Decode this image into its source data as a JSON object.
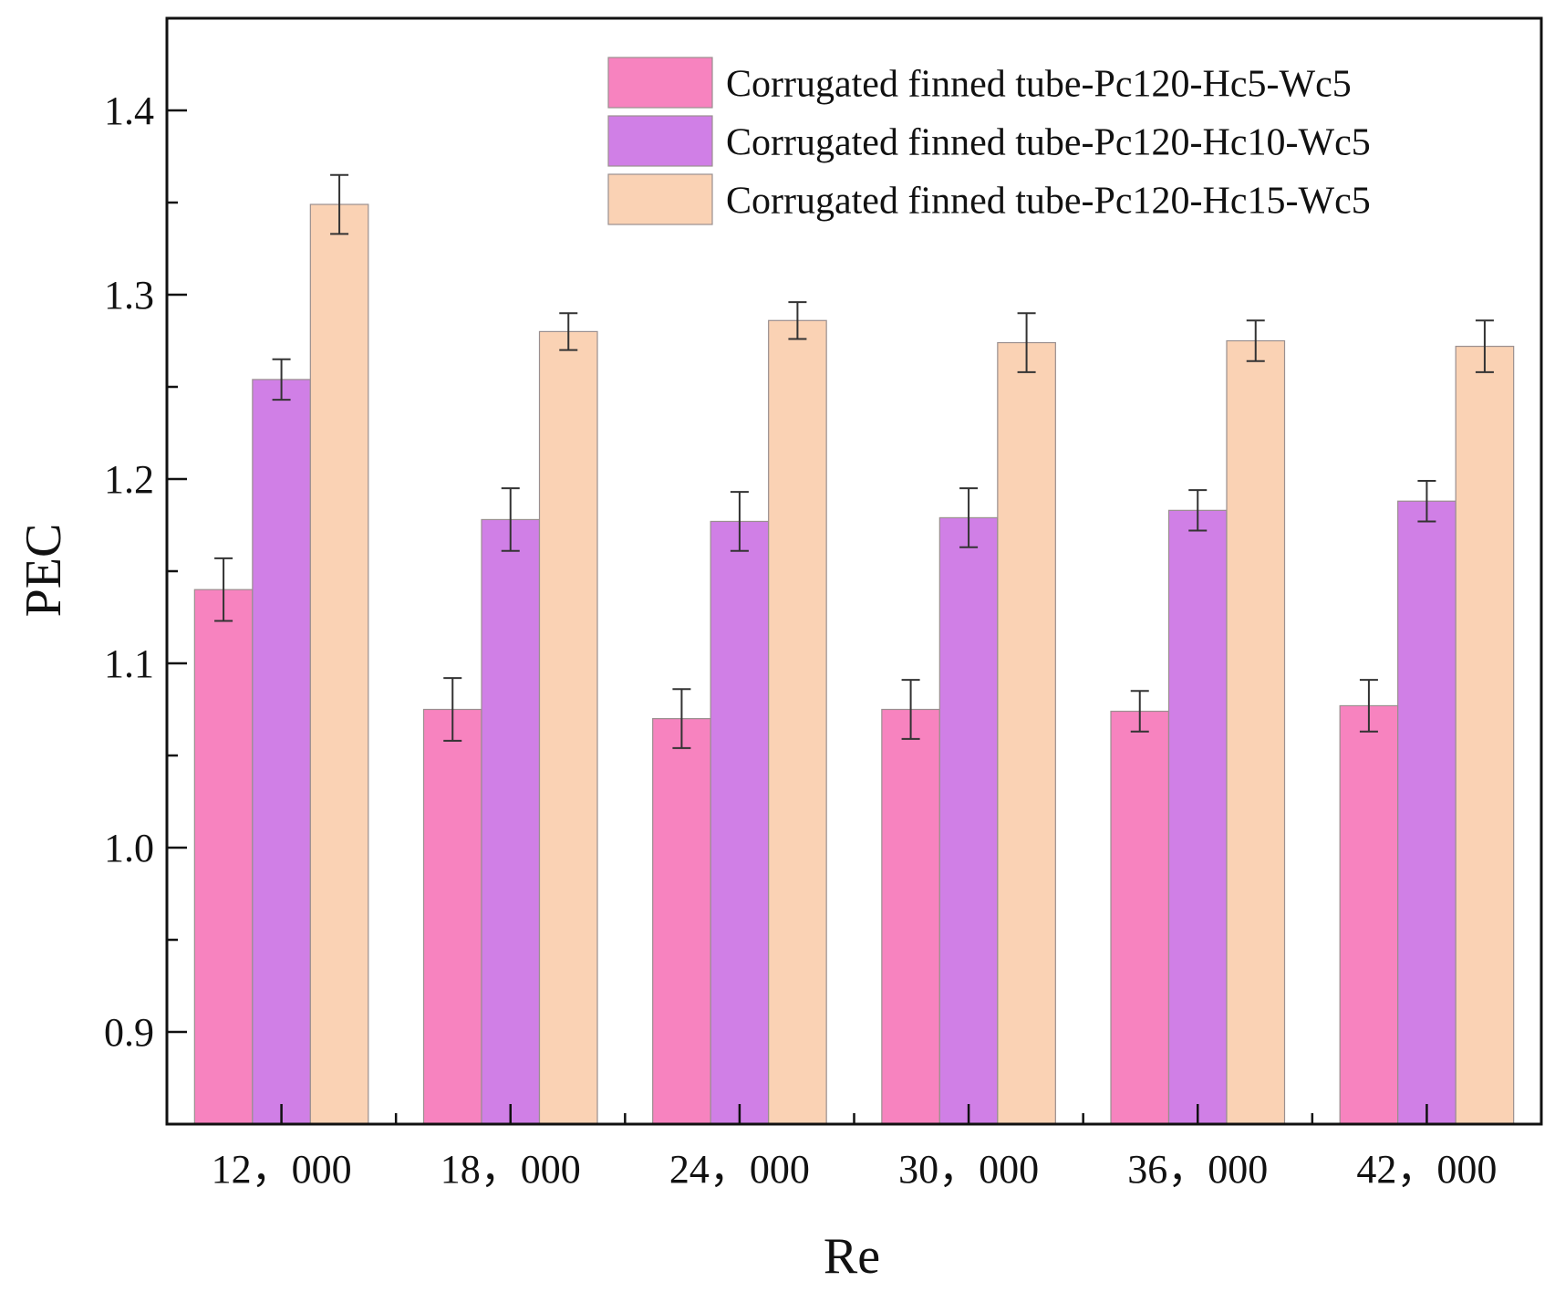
{
  "chart_data": {
    "type": "bar",
    "title": "",
    "xlabel": "Re",
    "ylabel": "PEC",
    "ylim": [
      0.85,
      1.45
    ],
    "yticks": [
      0.9,
      1.0,
      1.1,
      1.2,
      1.3,
      1.4
    ],
    "ytick_labels": [
      "0.9",
      "1.0",
      "1.1",
      "1.2",
      "1.3",
      "1.4"
    ],
    "categories": [
      "12，000",
      "18，000",
      "24，000",
      "30，000",
      "36，000",
      "42，000"
    ],
    "legend_position": "top-right",
    "series": [
      {
        "name": "Corrugated finned tube-Pc120-Hc5-Wc5",
        "color": "#f783bf",
        "values": [
          1.14,
          1.075,
          1.07,
          1.075,
          1.074,
          1.077
        ],
        "errors": [
          0.017,
          0.017,
          0.016,
          0.016,
          0.011,
          0.014
        ]
      },
      {
        "name": "Corrugated finned tube-Pc120-Hc10-Wc5",
        "color": "#d07fe6",
        "values": [
          1.254,
          1.178,
          1.177,
          1.179,
          1.183,
          1.188
        ],
        "errors": [
          0.011,
          0.017,
          0.016,
          0.016,
          0.011,
          0.011
        ]
      },
      {
        "name": "Corrugated finned tube-Pc120-Hc15-Wc5",
        "color": "#fad2b4",
        "values": [
          1.349,
          1.28,
          1.286,
          1.274,
          1.275,
          1.272
        ],
        "errors": [
          0.016,
          0.01,
          0.01,
          0.016,
          0.011,
          0.014
        ]
      }
    ]
  }
}
